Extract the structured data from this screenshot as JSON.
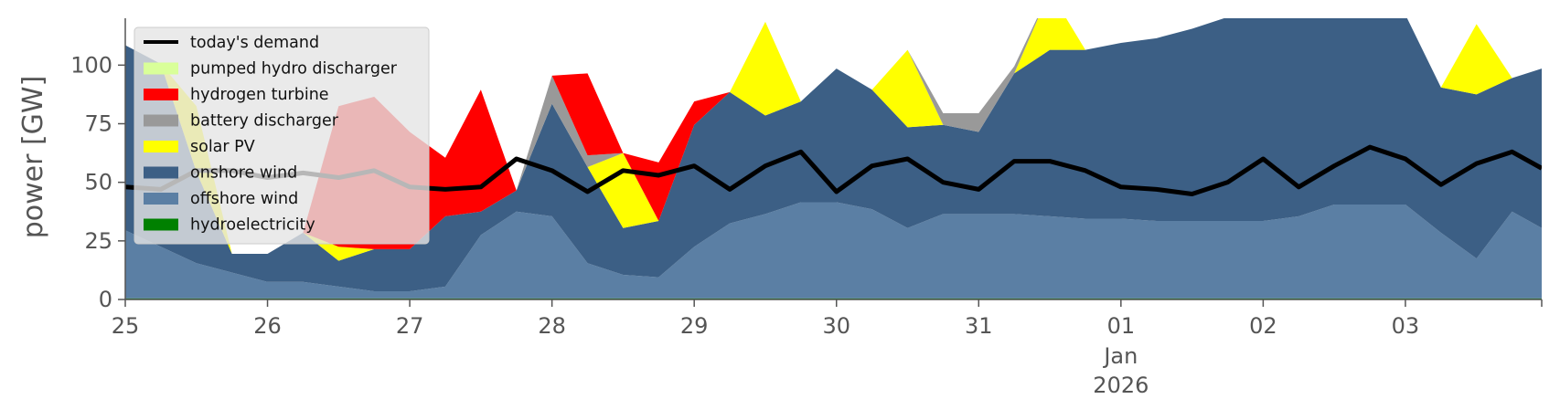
{
  "chart_data": {
    "type": "area",
    "title": "",
    "xlabel": "",
    "ylabel": "power [GW]",
    "ylim": [
      0,
      120
    ],
    "yticks": [
      0,
      25,
      50,
      75,
      100
    ],
    "x_range": [
      "2025-12-25T00:00",
      "2026-01-03T23:00"
    ],
    "x_ticks": [
      {
        "value": "2025-12-25",
        "label": "25"
      },
      {
        "value": "2025-12-26",
        "label": "26"
      },
      {
        "value": "2025-12-27",
        "label": "27"
      },
      {
        "value": "2025-12-28",
        "label": "28"
      },
      {
        "value": "2025-12-29",
        "label": "29"
      },
      {
        "value": "2025-12-30",
        "label": "30"
      },
      {
        "value": "2025-12-31",
        "label": "31"
      },
      {
        "value": "2026-01-01",
        "label": "01",
        "sublabels": [
          "Jan",
          "2026"
        ]
      },
      {
        "value": "2026-01-02",
        "label": "02"
      },
      {
        "value": "2026-01-03",
        "label": "03"
      }
    ],
    "grid": false,
    "legend_position": "top-left",
    "stack_order": [
      "hydroelectricity",
      "offshore wind",
      "onshore wind",
      "solar PV",
      "battery discharger",
      "hydrogen turbine",
      "pumped hydro discharger"
    ],
    "x": [
      "2025-12-25T00:00",
      "2025-12-25T06:00",
      "2025-12-25T12:00",
      "2025-12-25T18:00",
      "2025-12-26T00:00",
      "2025-12-26T06:00",
      "2025-12-26T12:00",
      "2025-12-26T18:00",
      "2025-12-27T00:00",
      "2025-12-27T06:00",
      "2025-12-27T12:00",
      "2025-12-27T18:00",
      "2025-12-28T00:00",
      "2025-12-28T06:00",
      "2025-12-28T12:00",
      "2025-12-28T18:00",
      "2025-12-29T00:00",
      "2025-12-29T06:00",
      "2025-12-29T12:00",
      "2025-12-29T18:00",
      "2025-12-30T00:00",
      "2025-12-30T06:00",
      "2025-12-30T12:00",
      "2025-12-30T18:00",
      "2025-12-31T00:00",
      "2025-12-31T06:00",
      "2025-12-31T12:00",
      "2025-12-31T18:00",
      "2026-01-01T00:00",
      "2026-01-01T06:00",
      "2026-01-01T12:00",
      "2026-01-01T18:00",
      "2026-01-02T00:00",
      "2026-01-02T06:00",
      "2026-01-02T12:00",
      "2026-01-02T18:00",
      "2026-01-03T00:00",
      "2026-01-03T06:00",
      "2026-01-03T12:00",
      "2026-01-03T18:00",
      "2026-01-03T23:00"
    ],
    "series": [
      {
        "name": "hydroelectricity",
        "color": "#008000",
        "values": [
          0.5,
          0.5,
          0.5,
          0.5,
          0.5,
          0.5,
          0.5,
          0.5,
          0.5,
          0.5,
          0.5,
          0.5,
          0.5,
          0.5,
          0.5,
          0.5,
          0.5,
          0.5,
          0.5,
          0.5,
          0.5,
          0.5,
          0.5,
          0.5,
          0.5,
          0.5,
          0.5,
          0.5,
          0.5,
          0.5,
          0.5,
          0.5,
          0.5,
          0.5,
          0.5,
          0.5,
          0.5,
          0.5,
          0.5,
          0.5,
          0.5
        ]
      },
      {
        "name": "offshore wind",
        "color": "#5b7fa4",
        "values": [
          29,
          22,
          15,
          11,
          7,
          7,
          5,
          3,
          3,
          5,
          27,
          37,
          35,
          15,
          10,
          9,
          22,
          32,
          36,
          41,
          41,
          38,
          30,
          36,
          36,
          36,
          35,
          34,
          34,
          33,
          33,
          33,
          33,
          35,
          40,
          40,
          40,
          28,
          17,
          37,
          30
        ]
      },
      {
        "name": "onshore wind",
        "color": "#3c5f85",
        "values": [
          79,
          78,
          39,
          8,
          12,
          21,
          11,
          18,
          18,
          30,
          10,
          9,
          48,
          41,
          20,
          24,
          52,
          56,
          42,
          43,
          57,
          51,
          43,
          38,
          35,
          60,
          71,
          72,
          75,
          78,
          82,
          87,
          87,
          85,
          80,
          80,
          81,
          62,
          70,
          57,
          68
        ]
      },
      {
        "name": "solar PV",
        "color": "#ffff00",
        "values": [
          0,
          0,
          28,
          0,
          0,
          0,
          6,
          0,
          0,
          0,
          0,
          0,
          0,
          0,
          32,
          0,
          0,
          0,
          40,
          0,
          0,
          0,
          33,
          0,
          0,
          0,
          25,
          0,
          0,
          0,
          0,
          0,
          0,
          0,
          0,
          0,
          0,
          0,
          30,
          0,
          0
        ]
      },
      {
        "name": "battery discharger",
        "color": "#999999",
        "values": [
          0,
          0,
          0,
          0,
          0,
          0,
          0,
          0,
          0,
          0,
          0,
          0,
          12,
          5,
          0,
          0,
          0,
          0,
          0,
          0,
          0,
          0,
          0,
          5,
          8,
          3,
          0,
          0,
          0,
          0,
          0,
          0,
          0,
          0,
          0,
          0,
          0,
          0,
          0,
          0,
          0
        ]
      },
      {
        "name": "hydrogen turbine",
        "color": "#ff0000",
        "values": [
          0,
          0,
          0,
          0,
          0,
          0,
          60,
          65,
          50,
          25,
          52,
          0,
          0,
          35,
          0,
          25,
          10,
          0,
          0,
          0,
          0,
          0,
          0,
          0,
          0,
          0,
          0,
          0,
          0,
          0,
          0,
          0,
          0,
          0,
          0,
          0,
          0,
          0,
          0,
          0,
          0
        ]
      },
      {
        "name": "pumped hydro discharger",
        "color": "#d9ff99",
        "values": [
          0,
          0,
          0,
          0,
          0,
          0,
          0,
          0,
          0,
          0,
          0,
          0,
          0,
          0,
          0,
          0,
          0,
          0,
          0,
          0,
          0,
          0,
          0,
          0,
          0,
          0,
          0,
          0,
          0,
          0,
          0,
          0,
          0,
          0,
          0,
          0,
          0,
          0,
          0,
          0,
          0
        ]
      }
    ],
    "demand": {
      "name": "today's demand",
      "color": "#000000",
      "values": [
        48,
        47,
        55,
        55,
        52,
        54,
        52,
        55,
        48,
        47,
        48,
        60,
        55,
        46,
        55,
        53,
        57,
        47,
        57,
        63,
        46,
        57,
        60,
        50,
        47,
        59,
        59,
        55,
        48,
        47,
        45,
        50,
        60,
        48,
        57,
        65,
        60,
        49,
        58,
        63,
        56
      ]
    },
    "legend": [
      {
        "label": "today's demand",
        "kind": "line",
        "color": "#000000"
      },
      {
        "label": "pumped hydro discharger",
        "kind": "patch",
        "color": "#d9ff99"
      },
      {
        "label": "hydrogen turbine",
        "kind": "patch",
        "color": "#ff0000"
      },
      {
        "label": "battery discharger",
        "kind": "patch",
        "color": "#999999"
      },
      {
        "label": "solar PV",
        "kind": "patch",
        "color": "#ffff00"
      },
      {
        "label": "onshore wind",
        "kind": "patch",
        "color": "#3c5f85"
      },
      {
        "label": "offshore wind",
        "kind": "patch",
        "color": "#5b7fa4"
      },
      {
        "label": "hydroelectricity",
        "kind": "patch",
        "color": "#008000"
      }
    ]
  }
}
